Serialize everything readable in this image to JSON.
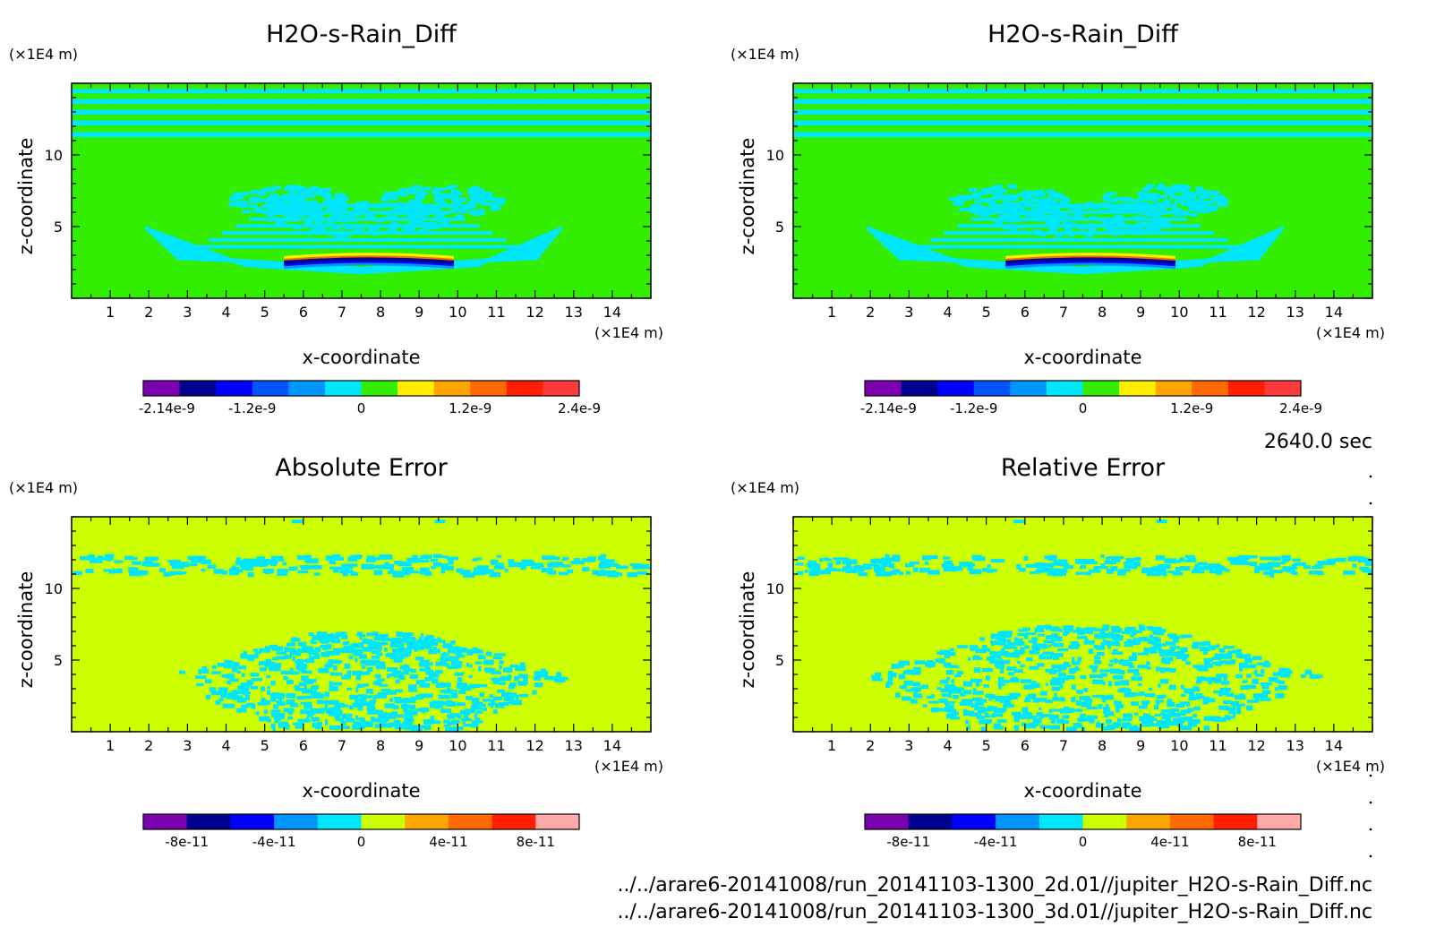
{
  "chart_data": [
    {
      "type": "heatmap",
      "title": "H2O-s-Rain_Diff",
      "xlabel": "x-coordinate",
      "ylabel": "z-coordinate",
      "x_unit": "(×1E4 m)",
      "y_unit": "(×1E4 m)",
      "xticks": [
        1,
        2,
        3,
        4,
        5,
        6,
        7,
        8,
        9,
        10,
        11,
        12,
        13,
        14
      ],
      "yticks": [
        5,
        10
      ],
      "xlim": [
        0,
        15
      ],
      "ylim": [
        0,
        15
      ],
      "colorbar": {
        "colors": [
          "#7a00b0",
          "#00008f",
          "#0000ff",
          "#0055ff",
          "#0096ff",
          "#00e6ff",
          "#33ee00",
          "#ffee00",
          "#ffa500",
          "#ff6a00",
          "#ff1e00",
          "#ff3a3a"
        ],
        "tick_labels": [
          "-2.14e-9",
          "-1.2e-9",
          "0",
          "1.2e-9",
          "2.4e-9"
        ],
        "tick_values": [
          -2.14e-09,
          -1.2e-09,
          0,
          1.2e-09,
          2.4e-09
        ],
        "range": [
          -2.4e-09,
          2.4e-09
        ]
      },
      "background_color": "#33ee00",
      "feature_color": "#00e6ff"
    },
    {
      "type": "heatmap",
      "title": "H2O-s-Rain_Diff",
      "xlabel": "x-coordinate",
      "ylabel": "z-coordinate",
      "x_unit": "(×1E4 m)",
      "y_unit": "(×1E4 m)",
      "xticks": [
        1,
        2,
        3,
        4,
        5,
        6,
        7,
        8,
        9,
        10,
        11,
        12,
        13,
        14
      ],
      "yticks": [
        5,
        10
      ],
      "xlim": [
        0,
        15
      ],
      "ylim": [
        0,
        15
      ],
      "colorbar": {
        "colors": [
          "#7a00b0",
          "#00008f",
          "#0000ff",
          "#0055ff",
          "#0096ff",
          "#00e6ff",
          "#33ee00",
          "#ffee00",
          "#ffa500",
          "#ff6a00",
          "#ff1e00",
          "#ff3a3a"
        ],
        "tick_labels": [
          "-2.14e-9",
          "-1.2e-9",
          "0",
          "1.2e-9",
          "2.4e-9"
        ],
        "tick_values": [
          -2.14e-09,
          -1.2e-09,
          0,
          1.2e-09,
          2.4e-09
        ],
        "range": [
          -2.4e-09,
          2.4e-09
        ]
      },
      "background_color": "#33ee00",
      "feature_color": "#00e6ff"
    },
    {
      "type": "heatmap",
      "title": "Absolute Error",
      "xlabel": "x-coordinate",
      "ylabel": "z-coordinate",
      "x_unit": "(×1E4 m)",
      "y_unit": "(×1E4 m)",
      "xticks": [
        1,
        2,
        3,
        4,
        5,
        6,
        7,
        8,
        9,
        10,
        11,
        12,
        13,
        14
      ],
      "yticks": [
        5,
        10
      ],
      "xlim": [
        0,
        15
      ],
      "ylim": [
        0,
        15
      ],
      "colorbar": {
        "colors": [
          "#7a00b0",
          "#00008f",
          "#0000ff",
          "#0096ff",
          "#00e6ff",
          "#ccff00",
          "#ffa500",
          "#ff6a00",
          "#ff1e00",
          "#ffaaaa"
        ],
        "tick_labels": [
          "-8e-11",
          "-4e-11",
          "0",
          "4e-11",
          "8e-11"
        ],
        "tick_values": [
          -8e-11,
          -4e-11,
          0,
          4e-11,
          8e-11
        ],
        "range": [
          -1e-10,
          1e-10
        ]
      },
      "background_color": "#ccff00",
      "feature_color": "#00e6ff"
    },
    {
      "type": "heatmap",
      "title": "Relative Error",
      "xlabel": "x-coordinate",
      "ylabel": "z-coordinate",
      "x_unit": "(×1E4 m)",
      "y_unit": "(×1E4 m)",
      "xticks": [
        1,
        2,
        3,
        4,
        5,
        6,
        7,
        8,
        9,
        10,
        11,
        12,
        13,
        14
      ],
      "yticks": [
        5,
        10
      ],
      "xlim": [
        0,
        15
      ],
      "ylim": [
        0,
        15
      ],
      "colorbar": {
        "colors": [
          "#7a00b0",
          "#00008f",
          "#0000ff",
          "#0096ff",
          "#00e6ff",
          "#ccff00",
          "#ffa500",
          "#ff6a00",
          "#ff1e00",
          "#ffaaaa"
        ],
        "tick_labels": [
          "-8e-11",
          "-4e-11",
          "0",
          "4e-11",
          "8e-11"
        ],
        "tick_values": [
          -8e-11,
          -4e-11,
          0,
          4e-11,
          8e-11
        ],
        "range": [
          -1e-10,
          1e-10
        ]
      },
      "background_color": "#ccff00",
      "feature_color": "#00e6ff"
    }
  ],
  "time_label": "2640.0 sec",
  "file_paths": [
    "../../arare6-20141008/run_20141103-1300_2d.01//jupiter_H2O-s-Rain_Diff.nc",
    "../../arare6-20141008/run_20141103-1300_3d.01//jupiter_H2O-s-Rain_Diff.nc"
  ]
}
